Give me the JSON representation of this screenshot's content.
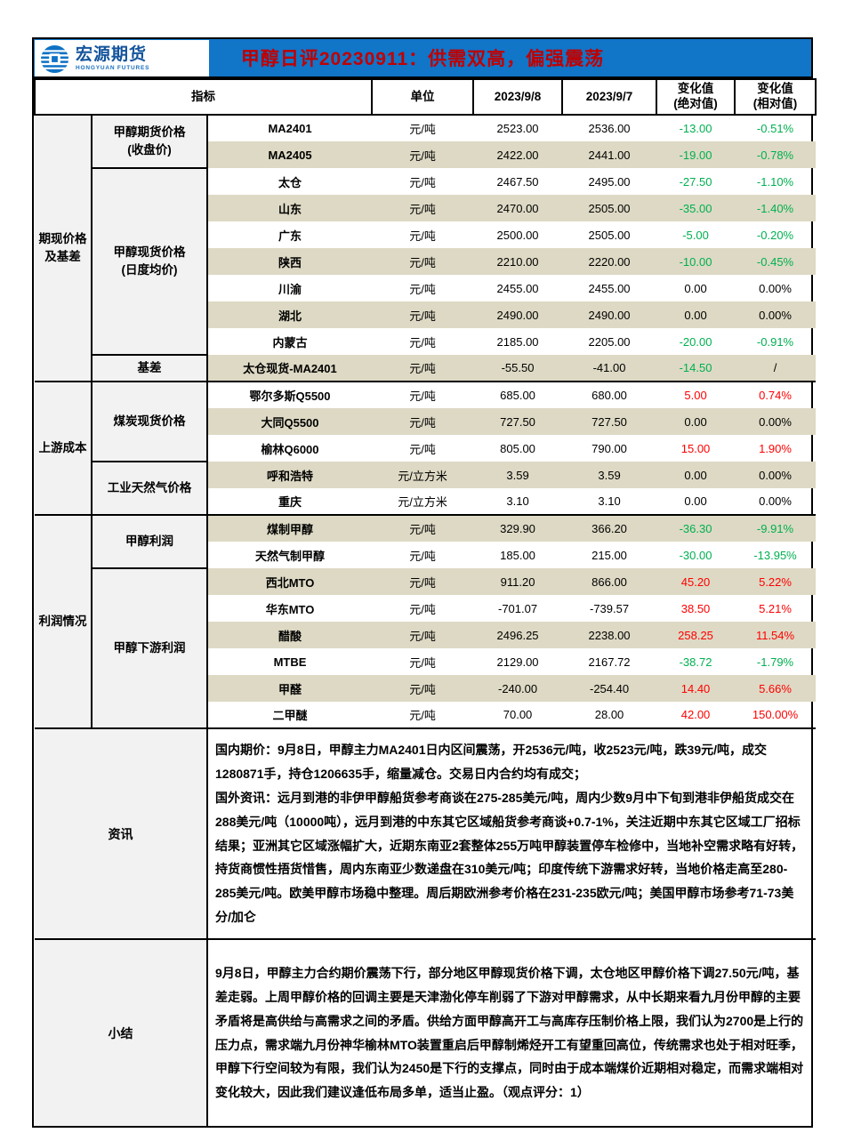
{
  "meta": {
    "report_title": "甲醇日评20230911：供需双高，偏强震荡"
  },
  "logo": {
    "name_cn": "宏源期货",
    "name_en": "HONGYUAN FUTURES"
  },
  "colors": {
    "header_blue": "#1175C8",
    "title_red": "#C00000",
    "stripe_beige": "#DDD9C4",
    "label_gray": "#F2F2F2",
    "change_up_red": "#FF0000",
    "change_down_green": "#00B050"
  },
  "table": {
    "header": {
      "indicator": "指标",
      "unit": "单位",
      "date_current": "2023/9/8",
      "date_previous": "2023/9/7",
      "change_abs": "变化值\n(绝对值)",
      "change_rel": "变化值\n(相对值)"
    },
    "sections": [
      {
        "group": "期现价格\n及基差",
        "subgroups": [
          {
            "label": "甲醇期货价格\n(收盘价)",
            "rows": [
              {
                "name": "MA2401",
                "unit": "元/吨",
                "cur": "2523.00",
                "prev": "2536.00",
                "abs": "-13.00",
                "rel": "-0.51%",
                "abs_trend": "down",
                "rel_trend": "down"
              },
              {
                "name": "MA2405",
                "unit": "元/吨",
                "cur": "2422.00",
                "prev": "2441.00",
                "abs": "-19.00",
                "rel": "-0.78%",
                "abs_trend": "down",
                "rel_trend": "down"
              }
            ]
          },
          {
            "label": "甲醇现货价格\n(日度均价)",
            "rows": [
              {
                "name": "太仓",
                "unit": "元/吨",
                "cur": "2467.50",
                "prev": "2495.00",
                "abs": "-27.50",
                "rel": "-1.10%",
                "abs_trend": "down",
                "rel_trend": "down"
              },
              {
                "name": "山东",
                "unit": "元/吨",
                "cur": "2470.00",
                "prev": "2505.00",
                "abs": "-35.00",
                "rel": "-1.40%",
                "abs_trend": "down",
                "rel_trend": "down"
              },
              {
                "name": "广东",
                "unit": "元/吨",
                "cur": "2500.00",
                "prev": "2505.00",
                "abs": "-5.00",
                "rel": "-0.20%",
                "abs_trend": "down",
                "rel_trend": "down"
              },
              {
                "name": "陕西",
                "unit": "元/吨",
                "cur": "2210.00",
                "prev": "2220.00",
                "abs": "-10.00",
                "rel": "-0.45%",
                "abs_trend": "down",
                "rel_trend": "down"
              },
              {
                "name": "川渝",
                "unit": "元/吨",
                "cur": "2455.00",
                "prev": "2455.00",
                "abs": "0.00",
                "rel": "0.00%",
                "abs_trend": "flat",
                "rel_trend": "flat"
              },
              {
                "name": "湖北",
                "unit": "元/吨",
                "cur": "2490.00",
                "prev": "2490.00",
                "abs": "0.00",
                "rel": "0.00%",
                "abs_trend": "flat",
                "rel_trend": "flat"
              },
              {
                "name": "内蒙古",
                "unit": "元/吨",
                "cur": "2185.00",
                "prev": "2205.00",
                "abs": "-20.00",
                "rel": "-0.91%",
                "abs_trend": "down",
                "rel_trend": "down"
              }
            ]
          },
          {
            "label": "基差",
            "rows": [
              {
                "name": "太仓现货-MA2401",
                "unit": "元/吨",
                "cur": "-55.50",
                "prev": "-41.00",
                "abs": "-14.50",
                "rel": "/",
                "abs_trend": "down",
                "rel_trend": "flat"
              }
            ]
          }
        ]
      },
      {
        "group": "上游成本",
        "subgroups": [
          {
            "label": "煤炭现货价格",
            "rows": [
              {
                "name": "鄂尔多斯Q5500",
                "unit": "元/吨",
                "cur": "685.00",
                "prev": "680.00",
                "abs": "5.00",
                "rel": "0.74%",
                "abs_trend": "up",
                "rel_trend": "up"
              },
              {
                "name": "大同Q5500",
                "unit": "元/吨",
                "cur": "727.50",
                "prev": "727.50",
                "abs": "0.00",
                "rel": "0.00%",
                "abs_trend": "flat",
                "rel_trend": "flat"
              },
              {
                "name": "榆林Q6000",
                "unit": "元/吨",
                "cur": "805.00",
                "prev": "790.00",
                "abs": "15.00",
                "rel": "1.90%",
                "abs_trend": "up",
                "rel_trend": "up"
              }
            ]
          },
          {
            "label": "工业天然气价格",
            "rows": [
              {
                "name": "呼和浩特",
                "unit": "元/立方米",
                "cur": "3.59",
                "prev": "3.59",
                "abs": "0.00",
                "rel": "0.00%",
                "abs_trend": "flat",
                "rel_trend": "flat"
              },
              {
                "name": "重庆",
                "unit": "元/立方米",
                "cur": "3.10",
                "prev": "3.10",
                "abs": "0.00",
                "rel": "0.00%",
                "abs_trend": "flat",
                "rel_trend": "flat"
              }
            ]
          }
        ]
      },
      {
        "group": "利润情况",
        "subgroups": [
          {
            "label": "甲醇利润",
            "rows": [
              {
                "name": "煤制甲醇",
                "unit": "元/吨",
                "cur": "329.90",
                "prev": "366.20",
                "abs": "-36.30",
                "rel": "-9.91%",
                "abs_trend": "down",
                "rel_trend": "down"
              },
              {
                "name": "天然气制甲醇",
                "unit": "元/吨",
                "cur": "185.00",
                "prev": "215.00",
                "abs": "-30.00",
                "rel": "-13.95%",
                "abs_trend": "down",
                "rel_trend": "down"
              }
            ]
          },
          {
            "label": "甲醇下游利润",
            "rows": [
              {
                "name": "西北MTO",
                "unit": "元/吨",
                "cur": "911.20",
                "prev": "866.00",
                "abs": "45.20",
                "rel": "5.22%",
                "abs_trend": "up",
                "rel_trend": "up"
              },
              {
                "name": "华东MTO",
                "unit": "元/吨",
                "cur": "-701.07",
                "prev": "-739.57",
                "abs": "38.50",
                "rel": "5.21%",
                "abs_trend": "up",
                "rel_trend": "up"
              },
              {
                "name": "醋酸",
                "unit": "元/吨",
                "cur": "2496.25",
                "prev": "2238.00",
                "abs": "258.25",
                "rel": "11.54%",
                "abs_trend": "up",
                "rel_trend": "up"
              },
              {
                "name": "MTBE",
                "unit": "元/吨",
                "cur": "2129.00",
                "prev": "2167.72",
                "abs": "-38.72",
                "rel": "-1.79%",
                "abs_trend": "down",
                "rel_trend": "down"
              },
              {
                "name": "甲醛",
                "unit": "元/吨",
                "cur": "-240.00",
                "prev": "-254.40",
                "abs": "14.40",
                "rel": "5.66%",
                "abs_trend": "up",
                "rel_trend": "up"
              },
              {
                "name": "二甲醚",
                "unit": "元/吨",
                "cur": "70.00",
                "prev": "28.00",
                "abs": "42.00",
                "rel": "150.00%",
                "abs_trend": "up",
                "rel_trend": "up"
              }
            ]
          }
        ]
      }
    ]
  },
  "news": {
    "label": "资讯",
    "paragraphs": [
      "国内期价：9月8日，甲醇主力MA2401日内区间震荡，开2536元/吨，收2523元/吨，跌39元/吨，成交1280871手，持仓1206635手，缩量减仓。交易日内合约均有成交；",
      "国外资讯：远月到港的非伊甲醇船货参考商谈在275-285美元/吨，周内少数9月中下旬到港非伊船货成交在288美元/吨（10000吨），远月到港的中东其它区域船货参考商谈+0.7-1%，关注近期中东其它区域工厂招标结果；亚洲其它区域涨幅扩大，近期东南亚2套整体255万吨甲醇装置停车检修中，当地补空需求略有好转，持货商惯性捂货惜售，周内东南亚少数递盘在310美元/吨；印度传统下游需求好转，当地价格走高至280-285美元/吨。欧美甲醇市场稳中整理。周后期欧洲参考价格在231-235欧元/吨；美国甲醇市场参考71-73美分/加仑"
    ]
  },
  "summary": {
    "label": "小结",
    "paragraphs": [
      "9月8日，甲醇主力合约期价震荡下行，部分地区甲醇现货价格下调，太仓地区甲醇价格下调27.50元/吨，基差走弱。上周甲醇价格的回调主要是天津渤化停车削弱了下游对甲醇需求，从中长期来看九月份甲醇的主要矛盾将是高供给与高需求之间的矛盾。供给方面甲醇高开工与高库存压制价格上限，我们认为2700是上行的压力点，需求端九月份神华榆林MTO装置重启后甲醇制烯烃开工有望重回高位，传统需求也处于相对旺季，甲醇下行空间较为有限，我们认为2450是下行的支撑点，同时由于成本端煤价近期相对稳定，而需求端相对变化较大，因此我们建议逢低布局多单，适当止盈。（观点评分：1）"
    ]
  }
}
